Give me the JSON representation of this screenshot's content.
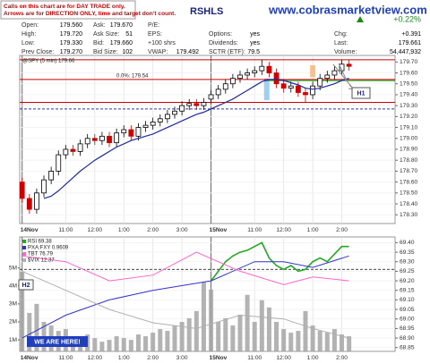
{
  "header": {
    "note": [
      "Calls on this chart are for DAY TRADE only.",
      "Arrows are for DIRECTION ONLY, time and target don't count."
    ],
    "title": "RSHLS",
    "website": "www.cobrasmarketview.com",
    "change": "+0.22%",
    "columns": [
      [
        {
          "label": "Open:",
          "value": "179.560"
        },
        {
          "label": "High:",
          "value": "179.720"
        },
        {
          "label": "Low:",
          "value": "179.330"
        },
        {
          "label": "Prev Close:",
          "value": "179.270"
        }
      ],
      [
        {
          "label": "Ask:",
          "value": "179.670"
        },
        {
          "label": "Ask Size:",
          "value": "51"
        },
        {
          "label": "Bid:",
          "value": "179.660"
        },
        {
          "label": "Bid Size:",
          "value": "102"
        }
      ],
      [
        {
          "label": "P/E:"
        },
        {
          "label": "EPS:"
        },
        {
          "label": "+100 shrs"
        },
        {
          "label": "VWAP:",
          "value": "179.492"
        }
      ],
      [
        {
          "label": "Options:",
          "value": "yes"
        },
        {
          "label": "Dividends:",
          "value": "yes"
        },
        {
          "label": "SCTR (ETF):",
          "value": "79.5"
        }
      ],
      [
        {
          "label": "Chg:",
          "value": "+0.391"
        },
        {
          "label": "Last:",
          "value": "179.661"
        },
        {
          "label": "Volume:",
          "value": "54,447,932"
        }
      ]
    ]
  },
  "chart_data": [
    {
      "type": "candlestick",
      "title": "@SPY (5 min) 179.66",
      "x": [
        0,
        3,
        6,
        9,
        12,
        15,
        18,
        21,
        24,
        27,
        30,
        33,
        36,
        39,
        42,
        45,
        48,
        51,
        54,
        57,
        60,
        63,
        66,
        69,
        72,
        75,
        78,
        81,
        84,
        87,
        90,
        93,
        96,
        99,
        102,
        105,
        108,
        111,
        114,
        117,
        120,
        123,
        126,
        129,
        132,
        135
      ],
      "open": [
        178.6,
        178.45,
        178.35,
        178.5,
        178.62,
        178.7,
        178.85,
        178.9,
        178.88,
        178.95,
        179.0,
        178.98,
        179.02,
        178.96,
        179.05,
        179.08,
        179.02,
        179.1,
        179.12,
        179.15,
        179.18,
        179.22,
        179.25,
        179.3,
        179.32,
        179.3,
        179.36,
        179.4,
        179.45,
        179.5,
        179.55,
        179.58,
        179.6,
        179.62,
        179.66,
        179.6,
        179.5,
        179.46,
        179.48,
        179.42,
        179.4,
        179.48,
        179.55,
        179.58,
        179.62,
        179.68
      ],
      "high": [
        178.64,
        178.49,
        178.54,
        178.66,
        178.74,
        178.89,
        178.94,
        178.94,
        178.99,
        179.04,
        179.04,
        179.06,
        179.06,
        179.09,
        179.12,
        179.12,
        179.14,
        179.16,
        179.19,
        179.22,
        179.26,
        179.29,
        179.34,
        179.36,
        179.36,
        179.37,
        179.44,
        179.49,
        179.54,
        179.59,
        179.62,
        179.64,
        179.66,
        179.72,
        179.7,
        179.64,
        179.54,
        179.52,
        179.52,
        179.46,
        179.52,
        179.59,
        179.62,
        179.66,
        179.72,
        179.72
      ],
      "low": [
        178.41,
        178.31,
        178.31,
        178.46,
        178.58,
        178.66,
        178.81,
        178.84,
        178.84,
        178.91,
        178.94,
        178.94,
        178.92,
        178.92,
        179.01,
        178.98,
        178.98,
        179.06,
        179.08,
        179.11,
        179.14,
        179.18,
        179.21,
        179.26,
        179.26,
        179.26,
        179.32,
        179.36,
        179.41,
        179.46,
        179.51,
        179.54,
        179.56,
        179.58,
        179.56,
        179.46,
        179.42,
        179.42,
        179.38,
        179.33,
        179.36,
        179.44,
        179.51,
        179.54,
        179.58,
        179.62
      ],
      "close": [
        178.45,
        178.35,
        178.5,
        178.62,
        178.7,
        178.85,
        178.9,
        178.88,
        178.95,
        179.0,
        178.98,
        179.02,
        178.96,
        179.05,
        179.08,
        179.02,
        179.1,
        179.12,
        179.15,
        179.18,
        179.22,
        179.25,
        179.3,
        179.32,
        179.3,
        179.33,
        179.4,
        179.45,
        179.5,
        179.55,
        179.58,
        179.6,
        179.62,
        179.66,
        179.6,
        179.5,
        179.46,
        179.48,
        179.42,
        179.4,
        179.48,
        179.55,
        179.58,
        179.62,
        179.68,
        179.66
      ],
      "up_color": "#000000",
      "down_color": "#cc0000",
      "ma": {
        "color": "#1f2a9e",
        "values": [
          null,
          null,
          null,
          178.45,
          178.47,
          178.52,
          178.58,
          178.64,
          178.7,
          178.75,
          178.8,
          178.84,
          178.88,
          178.92,
          178.95,
          178.98,
          179.0,
          179.02,
          179.04,
          179.07,
          179.1,
          179.13,
          179.16,
          179.19,
          179.22,
          179.24,
          179.27,
          179.3,
          179.33,
          179.36,
          179.4,
          179.44,
          179.48,
          179.52,
          179.54,
          179.54,
          179.53,
          179.51,
          179.49,
          179.46,
          179.45,
          179.46,
          179.48,
          179.5,
          179.53,
          179.55
        ]
      },
      "levels": [
        {
          "value": 179.72,
          "color": "#cc0000"
        },
        {
          "value": 179.54,
          "color": "#cc0000"
        },
        {
          "value": 179.53,
          "color": "#009900",
          "from": 100
        },
        {
          "value": 179.33,
          "color": "#cc0000"
        },
        {
          "value": 179.27,
          "color": "#2a3aa0",
          "dashed": true
        }
      ],
      "level_label": "0.0%: 179.54",
      "highlights": [
        {
          "x": 101,
          "from": 179.35,
          "to": 179.55,
          "color": "#8ec8f0"
        },
        {
          "x": 120,
          "from": 179.56,
          "to": 179.67,
          "color": "#f5b87a"
        }
      ],
      "annotations": [
        "H1"
      ],
      "xlim": [
        -1,
        154
      ],
      "ylim": [
        178.22,
        179.76
      ],
      "xticks": [
        {
          "value": 0,
          "label": "14Nov"
        },
        {
          "value": 18,
          "label": "11:00"
        },
        {
          "value": 30,
          "label": "12:00"
        },
        {
          "value": 42,
          "label": "1:00"
        },
        {
          "value": 54,
          "label": "2:00"
        },
        {
          "value": 66,
          "label": "3:00"
        },
        {
          "value": 78,
          "label": "15Nov"
        },
        {
          "value": 96,
          "label": "11:00"
        },
        {
          "value": 108,
          "label": "12:00"
        },
        {
          "value": 120,
          "label": "1:00"
        },
        {
          "value": 132,
          "label": "2:00"
        }
      ],
      "yticks": [
        {
          "value": 179.7,
          "label": "179.70"
        },
        {
          "value": 179.6,
          "label": "179.60"
        },
        {
          "value": 179.5,
          "label": "179.50"
        },
        {
          "value": 179.4,
          "label": "179.40"
        },
        {
          "value": 179.3,
          "label": "179.30"
        },
        {
          "value": 179.2,
          "label": "179.20"
        },
        {
          "value": 179.1,
          "label": "179.10"
        },
        {
          "value": 179,
          "label": "179.00"
        },
        {
          "value": 178.9,
          "label": "178.90"
        },
        {
          "value": 178.8,
          "label": "178.80"
        },
        {
          "value": 178.7,
          "label": "178.70"
        },
        {
          "value": 178.6,
          "label": "178.60"
        },
        {
          "value": 178.5,
          "label": "178.50"
        },
        {
          "value": 178.4,
          "label": "178.40"
        },
        {
          "value": 178.3,
          "label": "178.30"
        }
      ]
    },
    {
      "type": "volume",
      "x": [
        0,
        3,
        6,
        9,
        12,
        15,
        18,
        21,
        24,
        27,
        30,
        33,
        36,
        39,
        42,
        45,
        48,
        51,
        54,
        57,
        60,
        63,
        66,
        69,
        72,
        75,
        78,
        81,
        84,
        87,
        90,
        93,
        96,
        99,
        102,
        105,
        108,
        111,
        114,
        117,
        120,
        123,
        126,
        129,
        132,
        135
      ],
      "volume": {
        "color": "#a0a0a0",
        "values": [
          4800000,
          2500000,
          3000000,
          2000000,
          1800000,
          1500000,
          1600000,
          1200000,
          1000000,
          1300000,
          1100000,
          900000,
          1000000,
          1200000,
          1100000,
          1000000,
          1300000,
          1200000,
          1400000,
          1600000,
          1500000,
          1800000,
          2000000,
          2200000,
          2600000,
          4200000,
          3800000,
          2000000,
          2200000,
          1800000,
          2400000,
          3500000,
          2000000,
          3200000,
          2800000,
          2000000,
          1600000,
          1400000,
          1500000,
          2600000,
          1800000,
          1500000,
          1400000,
          1600000,
          1300000,
          1200000
        ]
      },
      "series": [
        {
          "name": "RSI 69.38",
          "color": "#22aa22",
          "axis": "y2",
          "x": [
            78,
            81,
            84,
            87,
            90,
            93,
            96,
            99,
            102,
            105,
            108,
            111,
            114,
            117,
            120,
            123,
            126,
            129,
            132,
            135
          ],
          "values": [
            69.2,
            69.25,
            69.3,
            69.33,
            69.35,
            69.36,
            69.38,
            69.4,
            69.32,
            69.28,
            69.26,
            69.28,
            69.25,
            69.26,
            69.3,
            69.32,
            69.3,
            69.34,
            69.38,
            69.38
          ]
        },
        {
          "name": "PXA:FXY 0.9609",
          "color": "#3333cc",
          "axis": "y2",
          "x": [
            0,
            18,
            36,
            54,
            78,
            96,
            108,
            120,
            135
          ],
          "values": [
            68.9,
            69.02,
            69.1,
            69.15,
            69.2,
            69.3,
            69.3,
            69.27,
            69.33
          ]
        },
        {
          "name": "TBT 76.79",
          "color": "#ff66cc",
          "axis": "y2",
          "x": [
            0,
            18,
            36,
            54,
            72,
            90,
            108,
            120,
            135
          ],
          "values": [
            69.33,
            69.3,
            69.2,
            69.23,
            69.35,
            69.25,
            69.18,
            69.22,
            69.2
          ]
        },
        {
          "name": "$VIX 12.37",
          "color": "#b0b0b0",
          "axis": "y2",
          "x": [
            0,
            18,
            36,
            54,
            72,
            90,
            108,
            120,
            135
          ],
          "values": [
            69.25,
            69.15,
            69.05,
            68.98,
            68.95,
            69.02,
            69.0,
            68.95,
            68.9
          ]
        }
      ],
      "levels": [
        {
          "value": 69.26,
          "color": "#000000",
          "dashed": true
        }
      ],
      "annotations": [
        "H2",
        "WE ARE HERE!"
      ],
      "xlim": [
        -1,
        154
      ],
      "ylim": [
        360000,
        6720000
      ],
      "yticks": [
        {
          "value": 5000000,
          "label": "5M"
        },
        {
          "value": 4000000,
          "label": "4M"
        },
        {
          "value": 3000000,
          "label": "3M"
        },
        {
          "value": 2000000,
          "label": "2M"
        },
        {
          "value": 1000000,
          "label": "1M"
        }
      ],
      "y2lim": [
        68.83,
        69.43
      ],
      "y2ticks": [
        {
          "value": 69.4,
          "label": "69.40"
        },
        69.35,
        {
          "value": 69.3,
          "label": "69.30"
        },
        69.25,
        {
          "value": 69.2,
          "label": "69.20"
        },
        69.15,
        {
          "value": 69.1,
          "label": "69.10"
        },
        69.05,
        {
          "value": 69,
          "label": "69.00"
        },
        68.95,
        {
          "value": 68.9,
          "label": "68.90"
        },
        68.85
      ],
      "xticks": [
        {
          "value": 0,
          "label": "14Nov"
        },
        {
          "value": 18,
          "label": "11:00"
        },
        {
          "value": 30,
          "label": "12:00"
        },
        {
          "value": 42,
          "label": "1:00"
        },
        {
          "value": 54,
          "label": "2:00"
        },
        {
          "value": 66,
          "label": "3:00"
        },
        {
          "value": 78,
          "label": "15Nov"
        },
        {
          "value": 96,
          "label": "11:00"
        },
        {
          "value": 108,
          "label": "12:00"
        },
        {
          "value": 120,
          "label": "1:00"
        },
        {
          "value": 132,
          "label": "2:00"
        }
      ]
    }
  ]
}
